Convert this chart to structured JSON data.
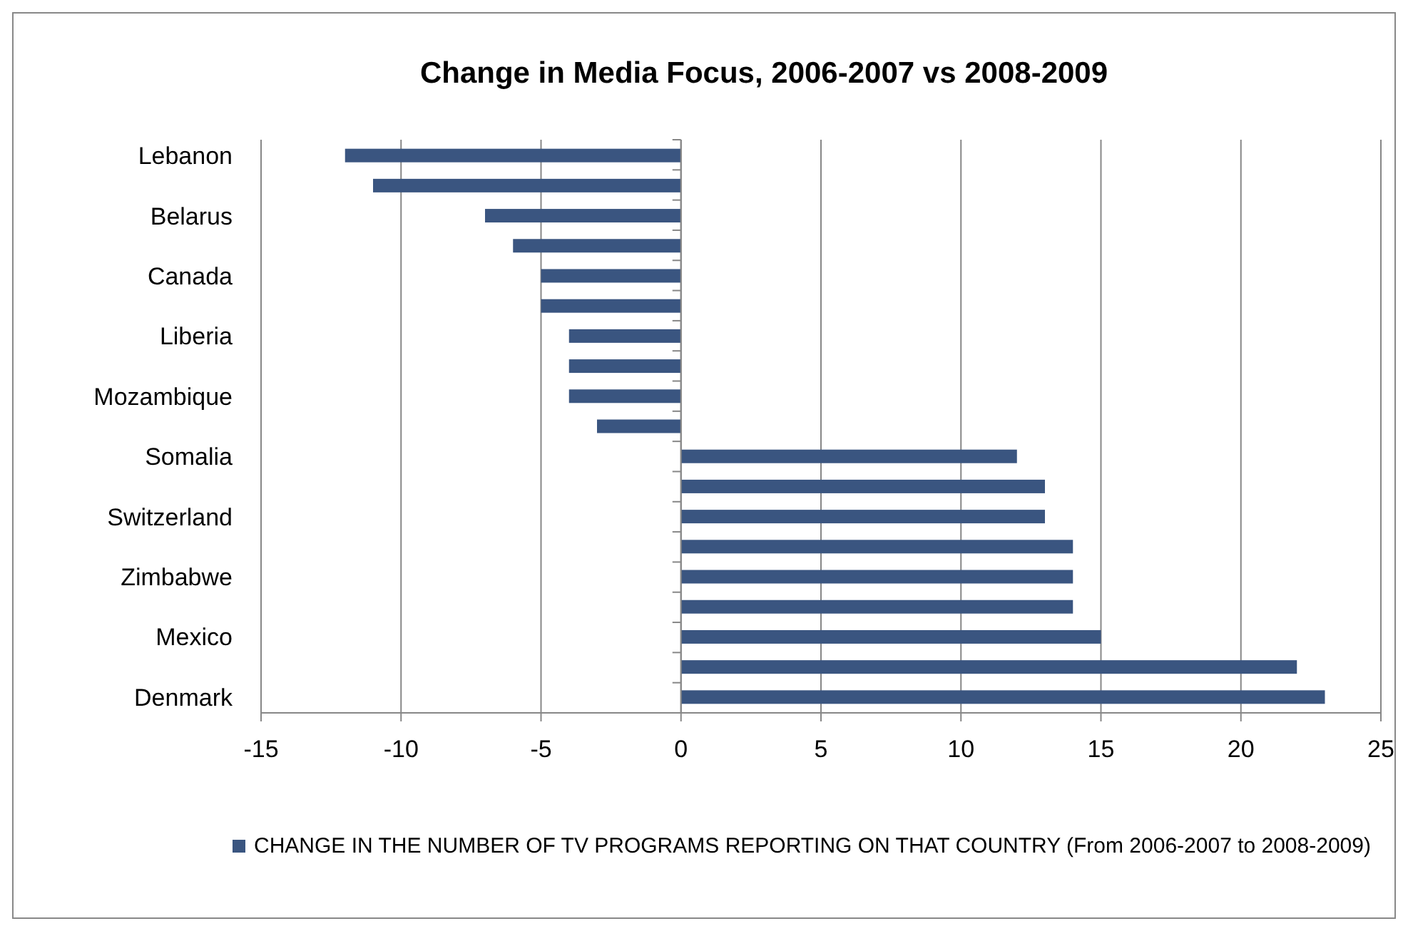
{
  "chart_data": {
    "type": "bar",
    "orientation": "horizontal",
    "title": "Change in Media Focus, 2006-2007 vs 2008-2009",
    "categories": [
      "Lebanon",
      null,
      "Belarus",
      null,
      "Canada",
      null,
      "Liberia",
      null,
      "Mozambique",
      null,
      "Somalia",
      null,
      "Switzerland",
      null,
      "Zimbabwe",
      null,
      "Mexico",
      null,
      "Denmark"
    ],
    "series": [
      {
        "name": "CHANGE IN THE NUMBER OF TV PROGRAMS REPORTING ON THAT COUNTRY (From 2006-2007 to 2008-2009)",
        "color": "#3a5580",
        "values": [
          -12,
          -11,
          -7,
          -6,
          -5,
          -5,
          -4,
          -4,
          -4,
          -3,
          12,
          13,
          13,
          14,
          14,
          14,
          15,
          22,
          23
        ]
      }
    ],
    "xlim": [
      -15,
      25
    ],
    "xticks": [
      -15,
      -10,
      -5,
      0,
      5,
      10,
      15,
      20,
      25
    ],
    "grid": "x",
    "legend": "bottom"
  }
}
